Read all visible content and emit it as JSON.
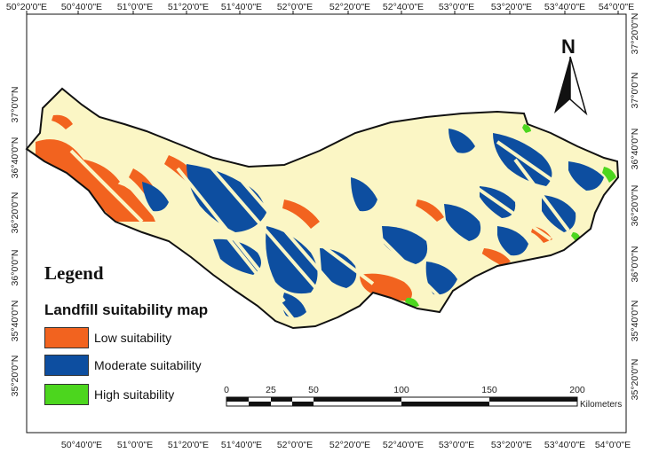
{
  "top_ticks": [
    "50°20'0\"E",
    "50°40'0\"E",
    "51°0'0\"E",
    "51°20'0\"E",
    "51°40'0\"E",
    "52°0'0\"E",
    "52°20'0\"E",
    "52°40'0\"E",
    "53°0'0\"E",
    "53°20'0\"E",
    "53°40'0\"E",
    "54°0'0\"E"
  ],
  "bottom_ticks": [
    "50°40'0\"E",
    "51°0'0\"E",
    "51°20'0\"E",
    "51°40'0\"E",
    "52°0'0\"E",
    "52°20'0\"E",
    "52°40'0\"E",
    "53°0'0\"E",
    "53°20'0\"E",
    "53°40'0\"E",
    "54°0'0\"E"
  ],
  "left_ticks": [
    "37°0'0\"N",
    "36°40'0\"N",
    "36°20'0\"N",
    "36°0'0\"N",
    "35°40'0\"N",
    "35°20'0\"N"
  ],
  "right_ticks": [
    "37°20'0\"N",
    "37°0'0\"N",
    "36°40'0\"N",
    "36°20'0\"N",
    "36°0'0\"N",
    "35°40'0\"N",
    "35°20'0\"N"
  ],
  "legend": {
    "title": "Legend",
    "subtitle": "Landfill suitability map",
    "items": [
      {
        "label": "Low suitability",
        "color": "#F2631F"
      },
      {
        "label": "Moderate suitability",
        "color": "#0D4EA0"
      },
      {
        "label": "High suitability",
        "color": "#4CD61E"
      }
    ]
  },
  "north_arrow": {
    "label": "N"
  },
  "scale_bar": {
    "labels": [
      "0",
      "25",
      "50",
      "100",
      "150",
      "200"
    ],
    "unit": "Kilometers"
  },
  "colors": {
    "base": "#FBF6C5",
    "outline": "#111111"
  }
}
